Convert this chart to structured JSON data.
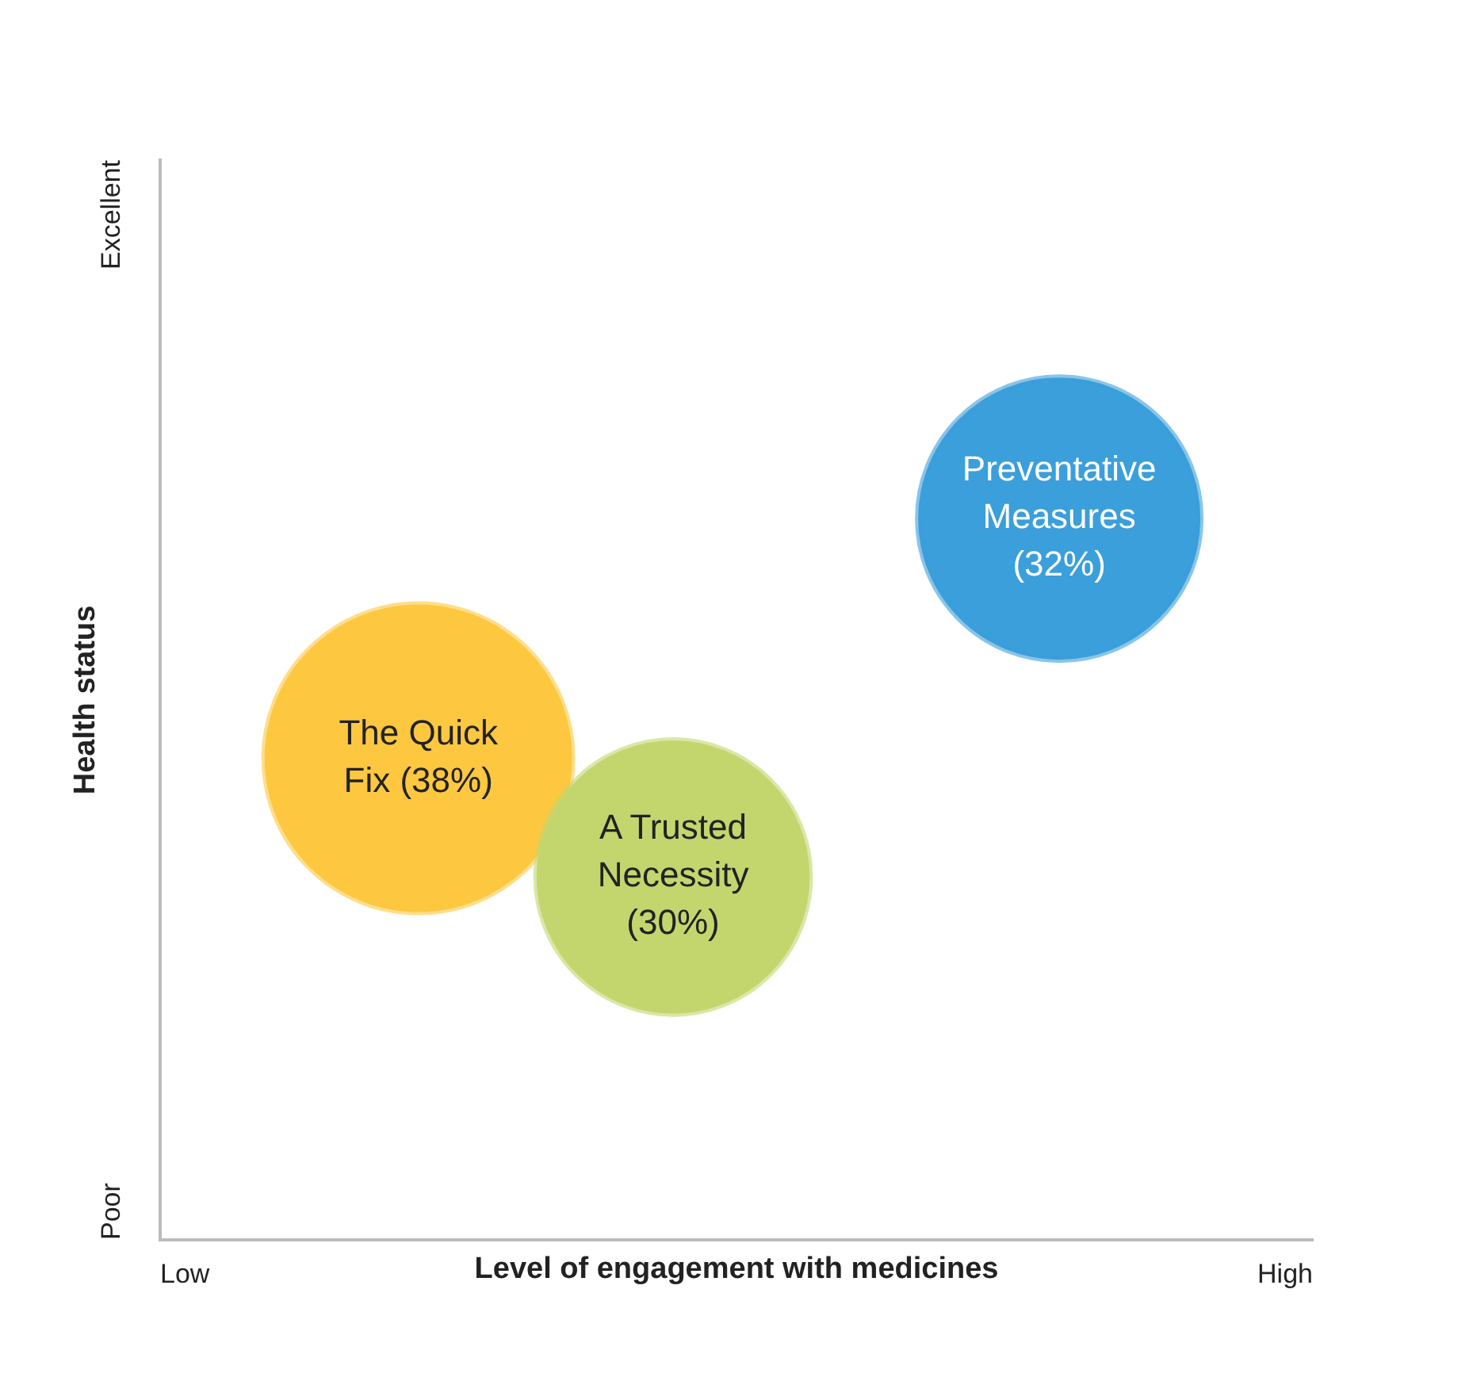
{
  "chart_data": {
    "type": "other",
    "xlabel": "Level of engagement with medicines",
    "ylabel": "Health status",
    "annotations": [
      "Low",
      "High",
      "Poor",
      "Excellent"
    ],
    "categories": [
      "The Quick Fix",
      "A Trusted Necessity",
      "Preventative Measures"
    ],
    "values": [
      38,
      30,
      32
    ],
    "value_labels": [
      "(38%)",
      "(30%)",
      "(32%)"
    ],
    "colors": [
      "#fdc840",
      "#c3d66e",
      "#3a9fdb"
    ]
  }
}
